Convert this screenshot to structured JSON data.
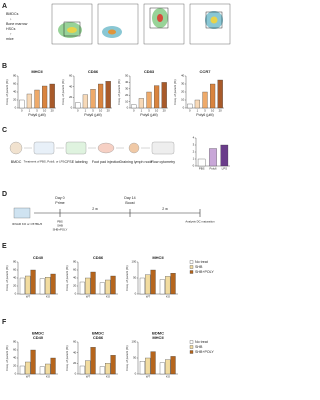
{
  "panels": {
    "a": "A",
    "b": "B",
    "c": "C",
    "d": "D",
    "e": "E",
    "f": "F"
  },
  "panel_a": {
    "lines": [
      "BMDCs",
      "↓",
      "Bone marrow",
      "HSCs",
      "↑",
      "mice"
    ]
  },
  "panel_c": {
    "steps": [
      "BMDC",
      "Treatment of PBS, Poly6, or LPS",
      "CFSE labeling",
      "Foot pad injection",
      "Draining lymph node",
      "Flow cytometry"
    ]
  },
  "panel_d": {
    "day0": "Day 0",
    "prime": "Prime",
    "day14": "Day 14",
    "boost": "Boost",
    "gap1": "2 w",
    "gap2": "2 w",
    "mice": "IFNAR KO or C57BL/6",
    "groups": [
      "PBS",
      "SHB",
      "SHB+POLY"
    ],
    "analysis": "Analysis DC maturation"
  },
  "chart_data": [
    {
      "type": "bar",
      "title": [
        "MHCII"
      ],
      "ylabel": "Freq. of parent (%)",
      "xlabel": "Poly6 (μM)",
      "categories": [
        "0",
        "1",
        "5",
        "10",
        "20"
      ],
      "values": [
        20,
        35,
        45,
        55,
        60
      ],
      "colors": [
        "#ffffff",
        "#f7d9b8",
        "#eeaa6a",
        "#d9843f",
        "#a85a2a"
      ],
      "ylim": [
        0,
        80
      ],
      "yticks": [
        0,
        20,
        40,
        60,
        80
      ]
    },
    {
      "type": "bar",
      "title": [
        "CD86"
      ],
      "ylabel": "Freq. of parent (%)",
      "xlabel": "Poly6 (μM)",
      "categories": [
        "0",
        "1",
        "5",
        "10",
        "20"
      ],
      "values": [
        10,
        25,
        35,
        45,
        50
      ],
      "colors": [
        "#ffffff",
        "#f7d9b8",
        "#eeaa6a",
        "#d9843f",
        "#a85a2a"
      ],
      "ylim": [
        0,
        60
      ],
      "yticks": [
        0,
        20,
        40,
        60
      ]
    },
    {
      "type": "bar",
      "title": [
        "CD83"
      ],
      "ylabel": "Freq. of parent (%)",
      "xlabel": "Poly6 (μM)",
      "categories": [
        "0",
        "1",
        "5",
        "10",
        "20"
      ],
      "values": [
        5,
        15,
        25,
        35,
        40
      ],
      "colors": [
        "#ffffff",
        "#f7d9b8",
        "#eeaa6a",
        "#d9843f",
        "#a85a2a"
      ],
      "ylim": [
        0,
        50
      ],
      "yticks": [
        0,
        10,
        20,
        30,
        40,
        50
      ]
    },
    {
      "type": "bar",
      "title": [
        "CCR7"
      ],
      "ylabel": "Freq. of parent (%)",
      "xlabel": "Poly6 (μM)",
      "categories": [
        "0",
        "1",
        "5",
        "10",
        "20"
      ],
      "values": [
        5,
        10,
        20,
        30,
        35
      ],
      "colors": [
        "#ffffff",
        "#f7d9b8",
        "#eeaa6a",
        "#d9843f",
        "#a85a2a"
      ],
      "ylim": [
        0,
        40
      ],
      "yticks": [
        0,
        10,
        20,
        30,
        40
      ]
    },
    {
      "type": "bar",
      "categories": [
        "PBS",
        "Poly6",
        "LPS"
      ],
      "values": [
        1,
        2.5,
        3
      ],
      "colors": [
        "#ffffff",
        "#c8a7d8",
        "#6a3d8a"
      ],
      "ylim": [
        0,
        4
      ],
      "yticks": [
        0,
        1,
        2,
        3,
        4
      ]
    },
    {
      "type": "bar",
      "title": [
        "CD40"
      ],
      "ylabel": "Freq. of parent (%)",
      "categories": [
        "WT",
        "KO"
      ],
      "series": [
        {
          "name": "No treat",
          "color": "#ffffff",
          "values": [
            40,
            38
          ]
        },
        {
          "name": "SHB",
          "color": "#f2dca0",
          "values": [
            45,
            42
          ]
        },
        {
          "name": "SHB+POLY",
          "color": "#b5651d",
          "values": [
            60,
            50
          ]
        }
      ],
      "ylim": [
        0,
        80
      ],
      "yticks": [
        0,
        20,
        40,
        60,
        80
      ]
    },
    {
      "type": "bar",
      "title": [
        "CD86"
      ],
      "ylabel": "Freq. of parent (%)",
      "categories": [
        "WT",
        "KO"
      ],
      "series": [
        {
          "name": "No treat",
          "color": "#ffffff",
          "values": [
            30,
            28
          ]
        },
        {
          "name": "SHB",
          "color": "#f2dca0",
          "values": [
            40,
            35
          ]
        },
        {
          "name": "SHB+POLY",
          "color": "#b5651d",
          "values": [
            55,
            45
          ]
        }
      ],
      "ylim": [
        0,
        80
      ],
      "yticks": [
        0,
        20,
        40,
        60,
        80
      ]
    },
    {
      "type": "bar",
      "title": [
        "MHCII"
      ],
      "ylabel": "Freq. of parent (%)",
      "categories": [
        "WT",
        "KO"
      ],
      "series": [
        {
          "name": "No treat",
          "color": "#ffffff",
          "values": [
            50,
            45
          ]
        },
        {
          "name": "SHB",
          "color": "#f2dca0",
          "values": [
            60,
            55
          ]
        },
        {
          "name": "SHB+POLY",
          "color": "#b5651d",
          "values": [
            75,
            65
          ]
        }
      ],
      "ylim": [
        0,
        100
      ],
      "yticks": [
        0,
        50,
        100
      ],
      "legend": "right"
    },
    {
      "type": "bar",
      "title": [
        "BMDC",
        "CD40"
      ],
      "ylabel": "Freq. of parent (%)",
      "categories": [
        "WT",
        "KO"
      ],
      "series": [
        {
          "name": "No treat",
          "color": "#ffffff",
          "values": [
            20,
            18
          ]
        },
        {
          "name": "SHB",
          "color": "#f2dca0",
          "values": [
            30,
            25
          ]
        },
        {
          "name": "SHB+POLY",
          "color": "#b5651d",
          "values": [
            60,
            40
          ]
        }
      ],
      "ylim": [
        0,
        80
      ],
      "yticks": [
        0,
        20,
        40,
        60,
        80
      ]
    },
    {
      "type": "bar",
      "title": [
        "BMDC",
        "CD86"
      ],
      "ylabel": "Freq. of parent (%)",
      "categories": [
        "WT",
        "KO"
      ],
      "series": [
        {
          "name": "No treat",
          "color": "#ffffff",
          "values": [
            15,
            14
          ]
        },
        {
          "name": "SHB",
          "color": "#f2dca0",
          "values": [
            25,
            20
          ]
        },
        {
          "name": "SHB+POLY",
          "color": "#b5651d",
          "values": [
            50,
            35
          ]
        }
      ],
      "ylim": [
        0,
        60
      ],
      "yticks": [
        0,
        20,
        40,
        60
      ]
    },
    {
      "type": "bar",
      "title": [
        "BDMC",
        "MHCII"
      ],
      "ylabel": "Freq. of parent (%)",
      "categories": [
        "WT",
        "KO"
      ],
      "series": [
        {
          "name": "No treat",
          "color": "#ffffff",
          "values": [
            40,
            35
          ]
        },
        {
          "name": "SHB",
          "color": "#f2dca0",
          "values": [
            50,
            45
          ]
        },
        {
          "name": "SHB+POLY",
          "color": "#b5651d",
          "values": [
            70,
            55
          ]
        }
      ],
      "ylim": [
        0,
        100
      ],
      "yticks": [
        0,
        50,
        100
      ],
      "legend": "right"
    }
  ]
}
